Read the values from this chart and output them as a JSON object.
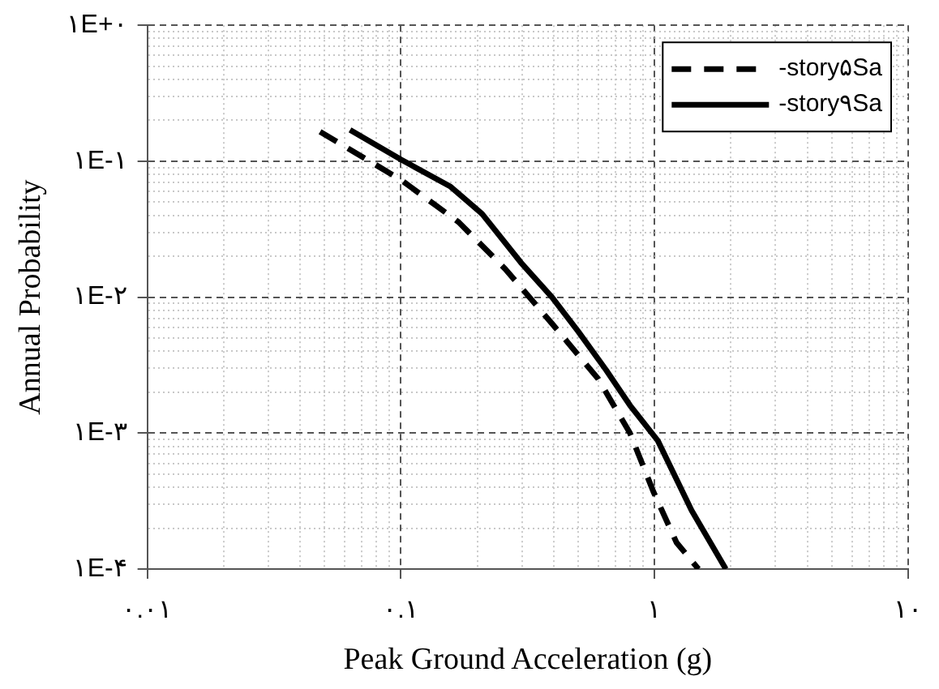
{
  "chart_data": {
    "type": "line",
    "xlabel": "Peak Ground Acceleration (g)",
    "ylabel": "Annual Probability",
    "log": "xy",
    "grid": true,
    "legend": "top right",
    "marker": "none",
    "xlim": [
      0.01,
      10
    ],
    "xticks": [
      {
        "value": 0.01,
        "label": "۰.۰۱"
      },
      {
        "value": 0.1,
        "label": "۰.۱"
      },
      {
        "value": 1,
        "label": "۱"
      },
      {
        "value": 10,
        "label": "۱۰"
      }
    ],
    "ylim": [
      0.0001,
      1
    ],
    "yticks": [
      {
        "value": 0.0001,
        "label": "۱E-۴"
      },
      {
        "value": 0.001,
        "label": "۱E-۳"
      },
      {
        "value": 0.01,
        "label": "۱E-۲"
      },
      {
        "value": 0.1,
        "label": "۱E-۱"
      },
      {
        "value": 1,
        "label": "۱E+۰"
      }
    ],
    "series": [
      {
        "name": "-story۵Sa",
        "color": "#000000",
        "line_style": "dashed",
        "x": [
          0.048,
          0.1,
          0.169,
          0.258,
          0.394,
          0.6,
          0.8,
          0.99,
          1.22,
          1.49
        ],
        "values": [
          0.165,
          0.073,
          0.0356,
          0.0161,
          0.0064,
          0.0025,
          0.001,
          0.00037,
          0.000157,
          0.0001
        ]
      },
      {
        "name": "-story۹Sa",
        "color": "#000000",
        "line_style": "solid",
        "x": [
          0.063,
          0.1,
          0.157,
          0.209,
          0.297,
          0.394,
          0.5,
          0.645,
          0.8,
          1.03,
          1.4,
          1.91
        ],
        "values": [
          0.17,
          0.103,
          0.065,
          0.041,
          0.018,
          0.01,
          0.0056,
          0.0029,
          0.0016,
          0.00088,
          0.00027,
          0.0001
        ]
      }
    ]
  }
}
